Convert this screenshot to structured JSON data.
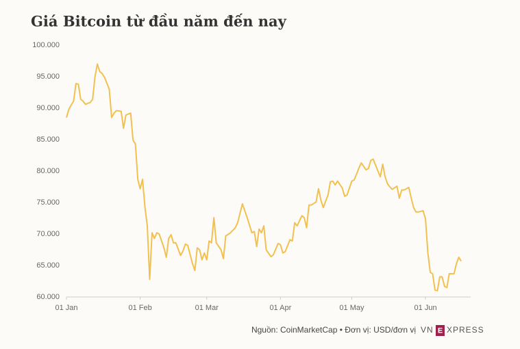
{
  "chart_data": {
    "type": "line",
    "title": "Giá Bitcoin từ đầu năm đến nay",
    "x": [
      0,
      1,
      2,
      3,
      4,
      5,
      6,
      7,
      8,
      10,
      11,
      12,
      13,
      14,
      15,
      16,
      18,
      19,
      20,
      21,
      23,
      24,
      25,
      27,
      28,
      29,
      30,
      31,
      32,
      33,
      34,
      35,
      36,
      37,
      38,
      39,
      41,
      42,
      43,
      44,
      45,
      46,
      48,
      49,
      50,
      51,
      53,
      54,
      55,
      56,
      57,
      58,
      59,
      60,
      61,
      62,
      63,
      65,
      66,
      67,
      69,
      71,
      72,
      74,
      76,
      78,
      79,
      80,
      81,
      82,
      83,
      84,
      86,
      87,
      89,
      90,
      91,
      92,
      94,
      95,
      96,
      97,
      99,
      100,
      101,
      102,
      103,
      105,
      106,
      107,
      108,
      110,
      111,
      112,
      113,
      114,
      116,
      117,
      118,
      120,
      121,
      122,
      123,
      124,
      126,
      127,
      128,
      129,
      131,
      132,
      133,
      134,
      135,
      136,
      137,
      139,
      140,
      141,
      142,
      144,
      145,
      146,
      147,
      148,
      150,
      151,
      152,
      153,
      154,
      155,
      156,
      157,
      158,
      159,
      160,
      161,
      163,
      164,
      165,
      166
    ],
    "values": [
      88500,
      89800,
      90500,
      91100,
      93900,
      93800,
      91400,
      91100,
      90600,
      90900,
      91400,
      95000,
      97000,
      95800,
      95500,
      94900,
      93000,
      88500,
      89200,
      89600,
      89500,
      86800,
      88900,
      89200,
      84900,
      84300,
      78700,
      77200,
      78700,
      74300,
      71300,
      62800,
      70200,
      69300,
      70200,
      70000,
      67800,
      66300,
      69300,
      69900,
      68600,
      68600,
      66600,
      67300,
      68400,
      68200,
      65300,
      64200,
      67800,
      67500,
      65900,
      67000,
      65900,
      68900,
      68600,
      72600,
      68600,
      67500,
      66100,
      69700,
      70200,
      71000,
      71800,
      74800,
      72600,
      70200,
      70400,
      68000,
      70800,
      70200,
      71300,
      67500,
      66400,
      66700,
      68500,
      68300,
      67000,
      67200,
      69100,
      68900,
      71800,
      71300,
      72900,
      72600,
      71000,
      74600,
      74600,
      75100,
      77200,
      75400,
      74200,
      76200,
      78300,
      78400,
      77800,
      78400,
      77300,
      76000,
      76200,
      78400,
      78600,
      79500,
      80500,
      81300,
      80200,
      80400,
      81700,
      81900,
      80000,
      79100,
      81100,
      79100,
      78000,
      77500,
      77100,
      77600,
      75700,
      77000,
      77000,
      77400,
      75700,
      74200,
      73500,
      73500,
      73700,
      72400,
      67000,
      63900,
      63700,
      61100,
      61000,
      63200,
      63200,
      61700,
      61500,
      63700,
      63700,
      65300,
      66300,
      65700
    ],
    "color": "#f2c04f",
    "xlim": [
      0,
      170
    ],
    "xticks": [
      {
        "value": 0,
        "label": "01 Jan"
      },
      {
        "value": 31,
        "label": "01 Feb"
      },
      {
        "value": 59,
        "label": "01 Mar"
      },
      {
        "value": 90,
        "label": "01 Apr"
      },
      {
        "value": 120,
        "label": "01 May"
      },
      {
        "value": 151,
        "label": "01 Jun"
      }
    ],
    "ylim": [
      60000,
      100000
    ],
    "yticks": [
      {
        "value": 60000,
        "label": "60.000"
      },
      {
        "value": 65000,
        "label": "65.000"
      },
      {
        "value": 70000,
        "label": "70.000"
      },
      {
        "value": 75000,
        "label": "75.000"
      },
      {
        "value": 80000,
        "label": "80.000"
      },
      {
        "value": 85000,
        "label": "85.000"
      },
      {
        "value": 90000,
        "label": "90.000"
      },
      {
        "value": 95000,
        "label": "95.000"
      },
      {
        "value": 100000,
        "label": "100.000"
      }
    ],
    "grid": false,
    "source": "Nguồn: CoinMarketCap • Đơn vị: USD/đơn vị",
    "logo": [
      "VN",
      "E",
      "XPRESS"
    ]
  }
}
